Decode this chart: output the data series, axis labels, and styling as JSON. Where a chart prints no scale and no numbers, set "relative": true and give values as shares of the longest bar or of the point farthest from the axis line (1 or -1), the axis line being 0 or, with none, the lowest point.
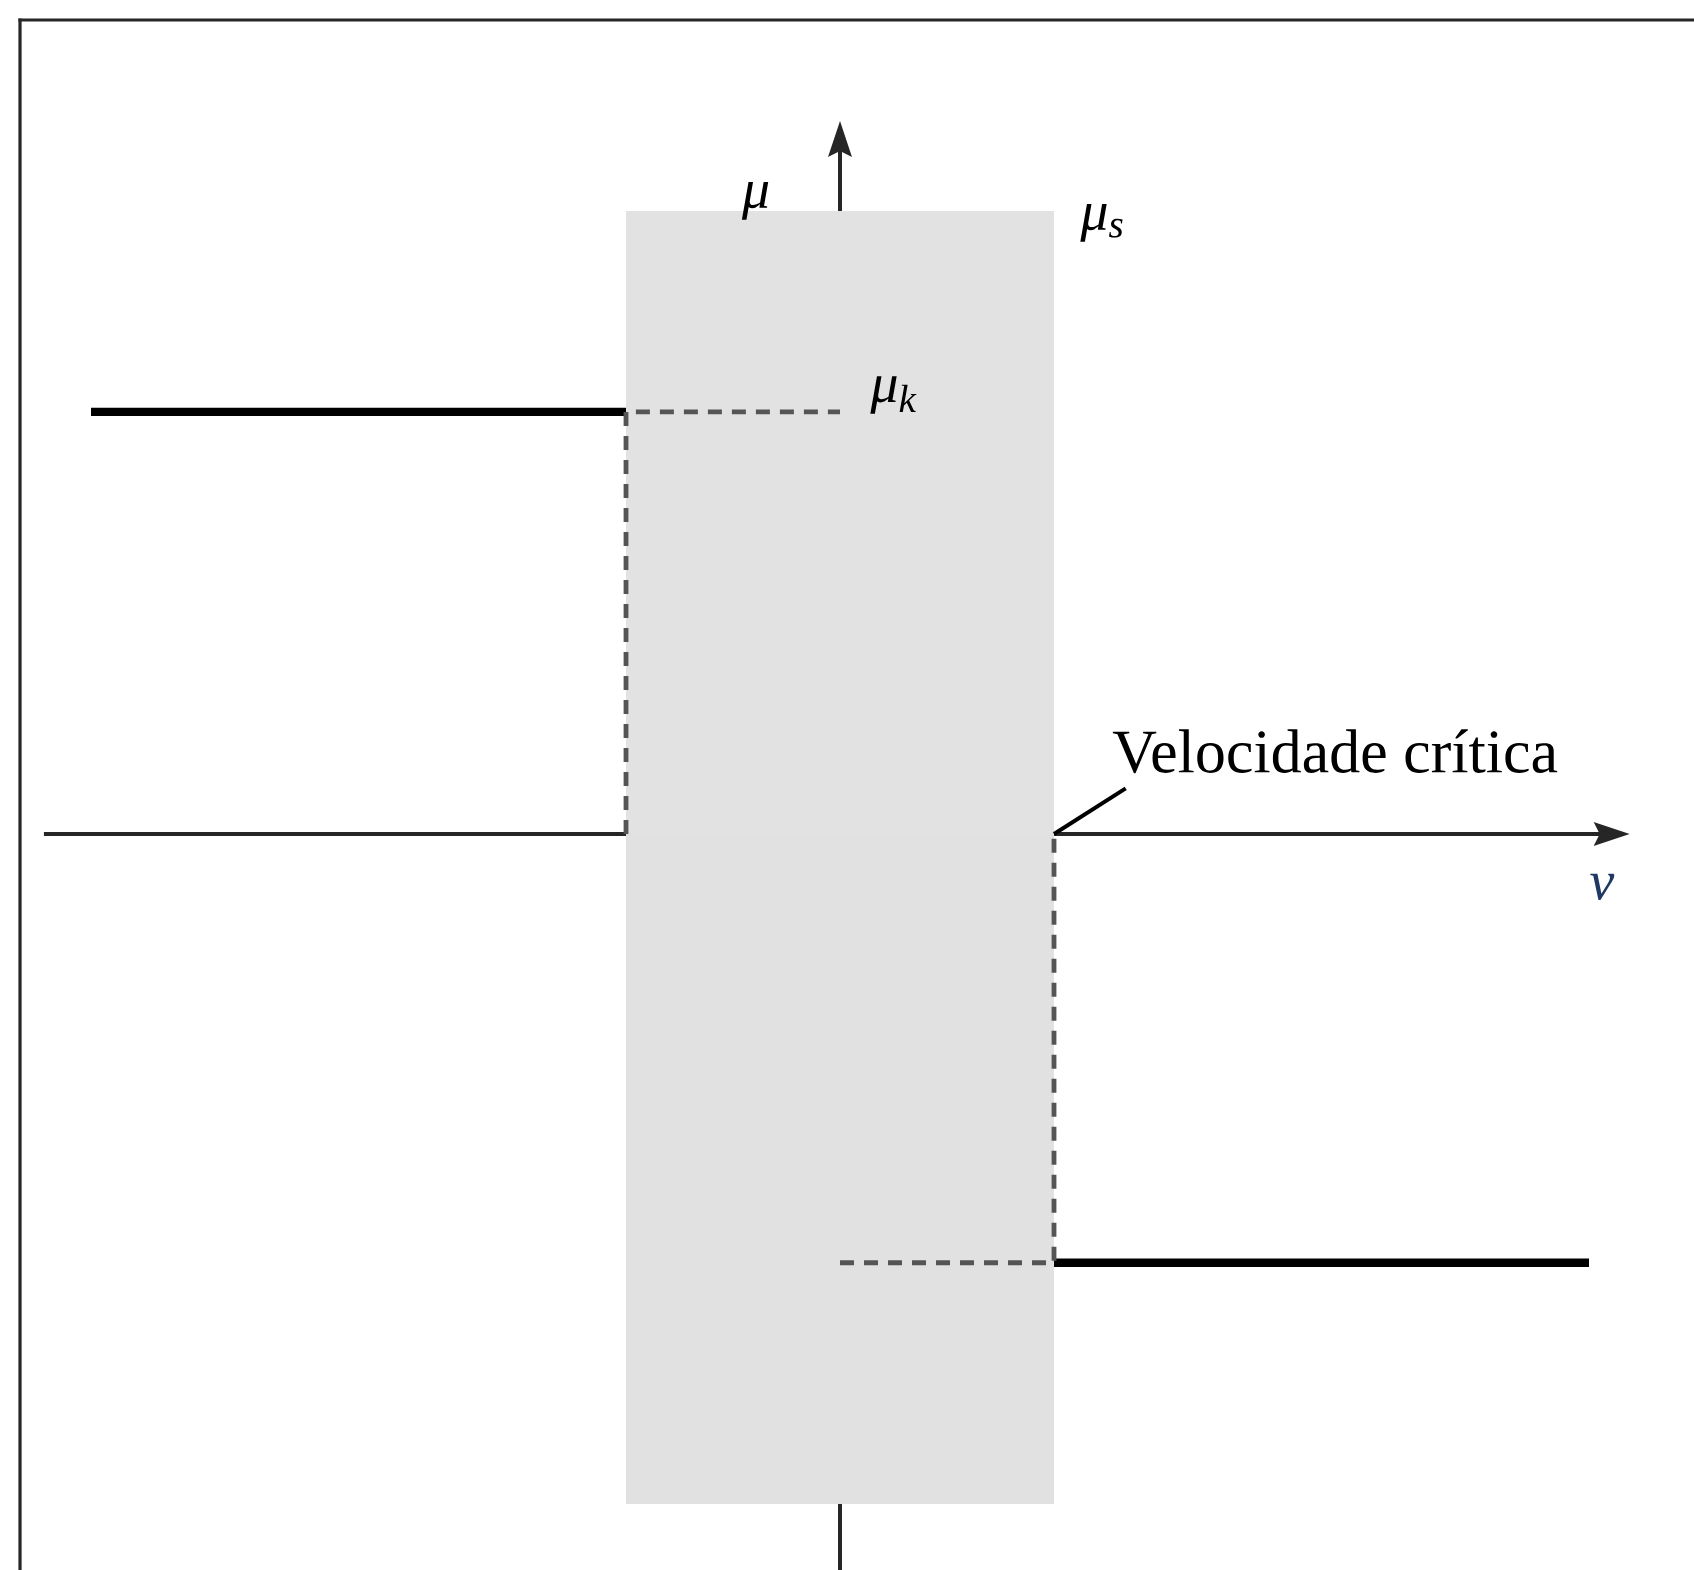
{
  "chart_data": {
    "type": "line",
    "relative": true,
    "xlabel": "v",
    "ylabel": "μ",
    "categories": [
      null,
      null,
      null,
      null,
      null,
      null,
      null,
      null,
      null,
      null,
      null,
      null,
      null,
      null,
      null
    ],
    "series": [
      {
        "type": "area",
        "color": "#e2e2e2",
        "values": [
          null,
          null,
          null,
          null,
          null,
          0.93,
          0.93,
          0.93,
          0.93,
          0.93,
          null,
          null,
          null,
          null,
          null
        ]
      },
      {
        "type": "area",
        "color": "#e1e1e1",
        "values": [
          null,
          null,
          null,
          null,
          null,
          -1,
          -1,
          -1,
          -1,
          -1,
          null,
          null,
          null,
          null,
          null
        ]
      },
      {
        "color": "#000000",
        "values": [
          0.63,
          0.63,
          0.63,
          0.63,
          0.63,
          0.63,
          null,
          null,
          null,
          -0.64,
          -0.64,
          -0.64,
          -0.64,
          -0.64,
          -0.64
        ]
      },
      {
        "type": "step",
        "color": "#555555",
        "line_style": "dashed",
        "values": [
          null,
          null,
          null,
          null,
          null,
          0,
          0.63,
          0.63,
          null,
          null,
          null,
          null,
          null,
          null,
          null
        ]
      },
      {
        "type": "step",
        "color": "#555555",
        "line_style": "dashed",
        "values": [
          null,
          null,
          null,
          null,
          null,
          null,
          null,
          -0.64,
          -0.64,
          0,
          null,
          null,
          null,
          null,
          null
        ]
      }
    ],
    "annotations": [
      "μ$_{s}$",
      "μ$_{k}$",
      "Velocidade crítica"
    ],
    "marker": "none",
    "line_style": "solid"
  }
}
